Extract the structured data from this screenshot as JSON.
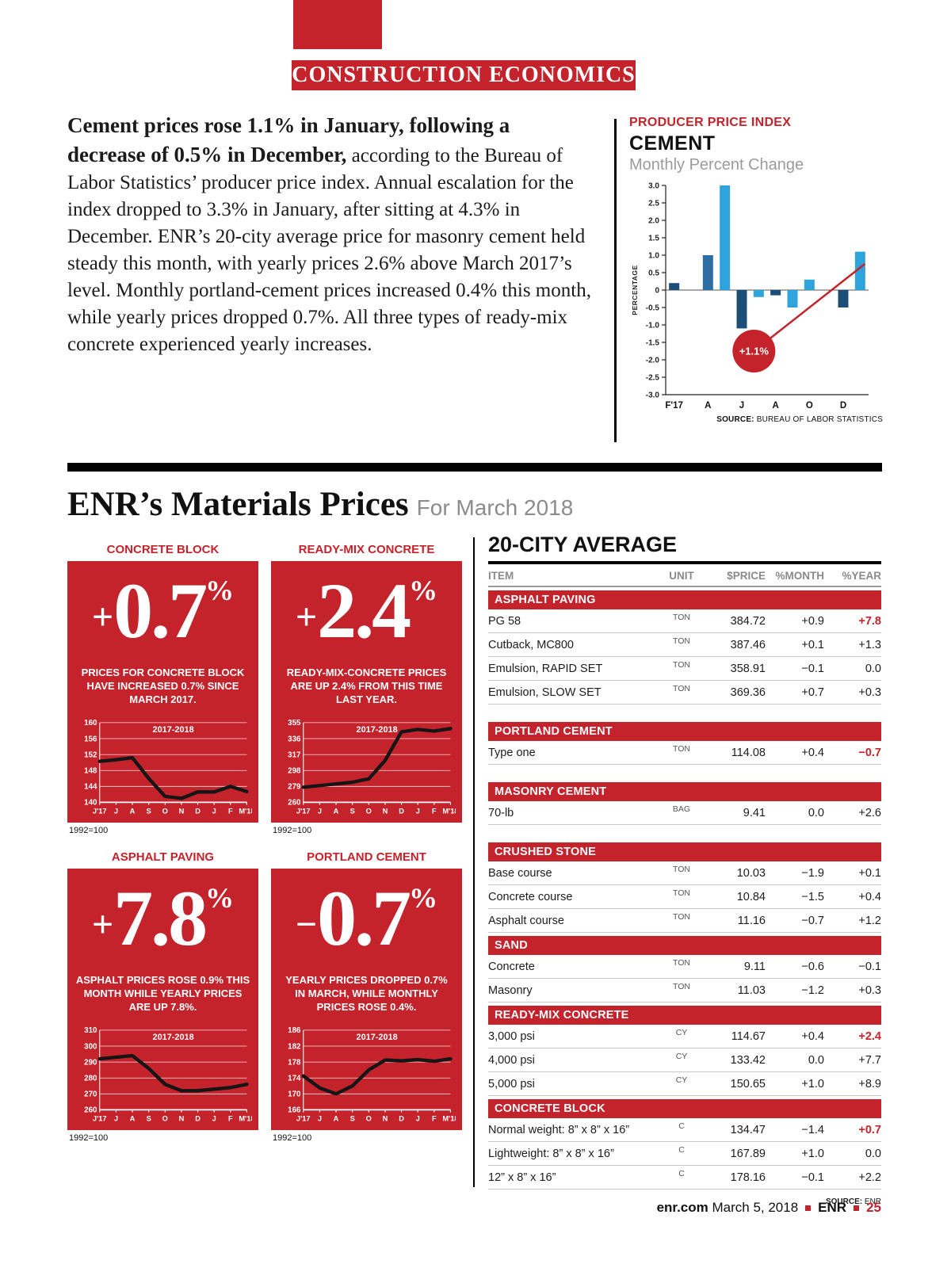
{
  "banner": {
    "label": "CONSTRUCTION ECONOMICS"
  },
  "article": {
    "lead": "Cement prices rose 1.1% in January, following a decrease of 0.5% in December,",
    "body": "according to the Bureau of Labor Statistics’ producer price index. Annual escalation for the index dropped to 3.3% in January, after sitting at 4.3% in December. ENR’s 20-city average price for masonry cement held steady this month, with yearly prices 2.6% above March 2017’s level. Monthly portland-cement prices increased 0.4% this month, while yearly prices dropped 0.7%. All three types of ready-mix concrete experienced yearly increases."
  },
  "ppi": {
    "kicker": "PRODUCER PRICE INDEX",
    "title": "CEMENT",
    "subtitle": "Monthly Percent Change",
    "source_label": "SOURCE:",
    "source": "BUREAU OF LABOR STATISTICS"
  },
  "materials": {
    "title": "ENR’s Materials Prices",
    "subtitle": "For March 2018"
  },
  "cards": [
    {
      "title": "CONCRETE BLOCK",
      "sign": "+",
      "value": "0.7",
      "unit": "%",
      "desc": "PRICES FOR CONCRETE BLOCK HAVE INCREASED 0.7% SINCE MARCH 2017.",
      "index_note": "1992=100",
      "chart": 1
    },
    {
      "title": "READY-MIX CONCRETE",
      "sign": "+",
      "value": "2.4",
      "unit": "%",
      "desc": "READY-MIX-CONCRETE PRICES ARE UP 2.4% FROM THIS TIME LAST YEAR.",
      "index_note": "1992=100",
      "chart": 2
    },
    {
      "title": "ASPHALT PAVING",
      "sign": "+",
      "value": "7.8",
      "unit": "%",
      "desc": "ASPHALT PRICES ROSE 0.9% THIS MONTH WHILE YEARLY PRICES ARE UP 7.8%.",
      "index_note": "1992=100",
      "chart": 3
    },
    {
      "title": "PORTLAND CEMENT",
      "sign": "−",
      "value": "0.7",
      "unit": "%",
      "desc": "YEARLY PRICES DROPPED 0.7% IN MARCH, WHILE MONTHLY PRICES ROSE 0.4%.",
      "index_note": "1992=100",
      "chart": 4
    }
  ],
  "table": {
    "title": "20-CITY AVERAGE",
    "columns": [
      "ITEM",
      "UNIT",
      "$PRICE",
      "%MONTH",
      "%YEAR"
    ],
    "source_label": "SOURCE:",
    "source": "ENR",
    "sections": [
      {
        "name": "ASPHALT PAVING",
        "gap": false,
        "rows": [
          {
            "item": "PG 58",
            "unit": "TON",
            "price": "384.72",
            "month": "+0.9",
            "year": "+7.8",
            "hl": true
          },
          {
            "item": "Cutback, MC800",
            "unit": "TON",
            "price": "387.46",
            "month": "+0.1",
            "year": "+1.3",
            "hl": false
          },
          {
            "item": "Emulsion, RAPID SET",
            "unit": "TON",
            "price": "358.91",
            "month": "−0.1",
            "year": "0.0",
            "hl": false
          },
          {
            "item": "Emulsion, SLOW SET",
            "unit": "TON",
            "price": "369.36",
            "month": "+0.7",
            "year": "+0.3",
            "hl": false
          }
        ]
      },
      {
        "name": "PORTLAND CEMENT",
        "gap": true,
        "rows": [
          {
            "item": "Type one",
            "unit": "TON",
            "price": "114.08",
            "month": "+0.4",
            "year": "−0.7",
            "hl": true
          }
        ]
      },
      {
        "name": "MASONRY CEMENT",
        "gap": true,
        "rows": [
          {
            "item": "70-lb",
            "unit": "BAG",
            "price": "9.41",
            "month": "0.0",
            "year": "+2.6",
            "hl": false
          }
        ]
      },
      {
        "name": "CRUSHED STONE",
        "gap": true,
        "rows": [
          {
            "item": "Base course",
            "unit": "TON",
            "price": "10.03",
            "month": "−1.9",
            "year": "+0.1",
            "hl": false
          },
          {
            "item": "Concrete course",
            "unit": "TON",
            "price": "10.84",
            "month": "−1.5",
            "year": "+0.4",
            "hl": false
          },
          {
            "item": "Asphalt course",
            "unit": "TON",
            "price": "11.16",
            "month": "−0.7",
            "year": "+1.2",
            "hl": false
          }
        ]
      },
      {
        "name": "SAND",
        "gap": false,
        "rows": [
          {
            "item": "Concrete",
            "unit": "TON",
            "price": "9.11",
            "month": "−0.6",
            "year": "−0.1",
            "hl": false
          },
          {
            "item": "Masonry",
            "unit": "TON",
            "price": "11.03",
            "month": "−1.2",
            "year": "+0.3",
            "hl": false
          }
        ]
      },
      {
        "name": "READY-MIX CONCRETE",
        "gap": false,
        "rows": [
          {
            "item": "3,000 psi",
            "unit": "CY",
            "price": "114.67",
            "month": "+0.4",
            "year": "+2.4",
            "hl": true
          },
          {
            "item": "4,000 psi",
            "unit": "CY",
            "price": "133.42",
            "month": "0.0",
            "year": "+7.7",
            "hl": false
          },
          {
            "item": "5,000 psi",
            "unit": "CY",
            "price": "150.65",
            "month": "+1.0",
            "year": "+8.9",
            "hl": false
          }
        ]
      },
      {
        "name": "CONCRETE BLOCK",
        "gap": false,
        "rows": [
          {
            "item": "Normal weight: 8” x 8” x 16”",
            "unit": "C",
            "price": "134.47",
            "month": "−1.4",
            "year": "+0.7",
            "hl": true
          },
          {
            "item": "Lightweight: 8” x 8” x 16”",
            "unit": "C",
            "price": "167.89",
            "month": "+1.0",
            "year": "0.0",
            "hl": false
          },
          {
            "item": "12” x 8” x 16”",
            "unit": "C",
            "price": "178.16",
            "month": "−0.1",
            "year": "+2.2",
            "hl": false
          }
        ]
      }
    ]
  },
  "footer": {
    "site": "enr.com",
    "date": " March 5, 2018",
    "brand": "ENR",
    "page": "25"
  },
  "colors": {
    "red": "#c4232b",
    "navy": "#1d4e79",
    "blue": "#2ea3dc",
    "steel": "#2d6da4"
  },
  "chart_data": [
    {
      "name": "ppi_cement_monthly_pct_change",
      "type": "bar",
      "title": "CEMENT — Monthly Percent Change",
      "ylabel": "PERCENTAGE",
      "ylim": [
        -3.0,
        3.0
      ],
      "ytick_step": 0.5,
      "x_months": [
        "F'17",
        "M",
        "A",
        "M",
        "J",
        "J",
        "A",
        "S",
        "O",
        "N",
        "D",
        "J'18"
      ],
      "x_tick_labels": [
        "F'17",
        "A",
        "J",
        "A",
        "O",
        "D"
      ],
      "tick_indices": [
        0,
        2,
        4,
        6,
        8,
        10
      ],
      "values": [
        0.2,
        0.0,
        1.0,
        3.0,
        -1.1,
        -0.2,
        -0.15,
        -0.5,
        0.3,
        0.0,
        -0.5,
        1.1
      ],
      "bar_colors": [
        "navy",
        "navy",
        "steel",
        "blue",
        "navy",
        "blue",
        "navy",
        "blue",
        "blue",
        "navy",
        "navy",
        "blue"
      ],
      "annotation": "+1.1%",
      "legend": "none",
      "grid": "off"
    },
    {
      "name": "concrete_block_index",
      "type": "line",
      "series_label": "2017-2018",
      "x": [
        "J'17",
        "J",
        "A",
        "S",
        "O",
        "N",
        "D",
        "J",
        "F",
        "M'18"
      ],
      "ylim": [
        140,
        160
      ],
      "yticks": [
        160,
        156,
        152,
        148,
        144,
        140
      ],
      "values": [
        150.3,
        150.7,
        151.2,
        146.0,
        141.5,
        141.0,
        142.6,
        142.6,
        144.0,
        142.7
      ],
      "note": "1992=100"
    },
    {
      "name": "ready_mix_concrete_index",
      "type": "line",
      "series_label": "2017-2018",
      "x": [
        "J'17",
        "J",
        "A",
        "S",
        "O",
        "N",
        "D",
        "J",
        "F",
        "M'18"
      ],
      "ylim": [
        260,
        355
      ],
      "yticks": [
        355,
        336,
        317,
        298,
        279,
        260
      ],
      "values": [
        278,
        280,
        282,
        284,
        288,
        310,
        344,
        347,
        345,
        348
      ],
      "note": "1992=100"
    },
    {
      "name": "asphalt_paving_index",
      "type": "line",
      "series_label": "2017-2018",
      "x": [
        "J'17",
        "J",
        "A",
        "S",
        "O",
        "N",
        "D",
        "J",
        "F",
        "M'18"
      ],
      "ylim": [
        260,
        310
      ],
      "yticks": [
        310,
        300,
        290,
        280,
        270,
        260
      ],
      "values": [
        292,
        293,
        294,
        286,
        276,
        272,
        272,
        273,
        274,
        276
      ],
      "note": "1992=100"
    },
    {
      "name": "portland_cement_index",
      "type": "line",
      "series_label": "2017-2018",
      "x": [
        "J'17",
        "J",
        "A",
        "S",
        "O",
        "N",
        "D",
        "J",
        "F",
        "M'18"
      ],
      "ylim": [
        166,
        186
      ],
      "yticks": [
        186,
        182,
        178,
        174,
        170,
        166
      ],
      "values": [
        174.5,
        171.5,
        170.0,
        172.0,
        176.0,
        178.5,
        178.3,
        178.6,
        178.2,
        178.8
      ],
      "note": "1992=100"
    }
  ]
}
